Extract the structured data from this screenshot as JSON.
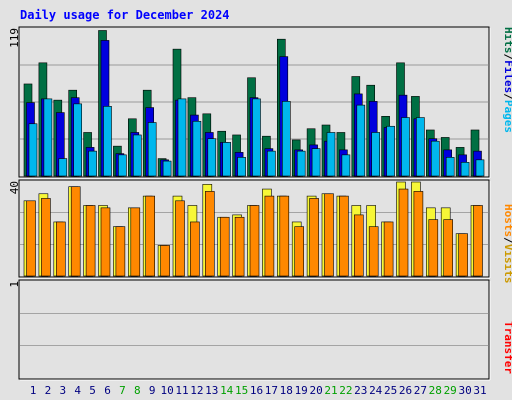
{
  "chart_data": [
    {
      "type": "bar",
      "title": "Daily usage for December 2024",
      "ymax_label": "119",
      "ylim": [
        0,
        119
      ],
      "categories": [
        "1",
        "2",
        "3",
        "4",
        "5",
        "6",
        "7",
        "8",
        "9",
        "10",
        "11",
        "12",
        "13",
        "14",
        "15",
        "16",
        "17",
        "18",
        "19",
        "20",
        "21",
        "22",
        "23",
        "24",
        "25",
        "26",
        "27",
        "28",
        "29",
        "30",
        "31"
      ],
      "weekend_days": [
        "7",
        "8",
        "14",
        "15",
        "21",
        "22",
        "28",
        "29"
      ],
      "series": [
        {
          "name": "Hits",
          "color": "#006f43",
          "values": [
            74,
            91,
            61,
            69,
            35,
            117,
            24,
            46,
            69,
            14,
            102,
            63,
            50,
            36,
            33,
            79,
            32,
            110,
            29,
            38,
            41,
            35,
            80,
            73,
            48,
            91,
            64,
            37,
            31,
            23,
            37
          ]
        },
        {
          "name": "Files",
          "color": "#0000dd",
          "values": [
            59,
            62,
            51,
            63,
            23,
            109,
            18,
            35,
            55,
            13,
            61,
            49,
            35,
            27,
            19,
            63,
            22,
            96,
            21,
            25,
            28,
            21,
            66,
            60,
            39,
            65,
            46,
            30,
            21,
            17,
            20
          ]
        },
        {
          "name": "Pages",
          "color": "#00b7ed",
          "values": [
            42,
            62,
            14,
            58,
            20,
            56,
            17,
            33,
            43,
            12,
            62,
            44,
            30,
            27,
            15,
            62,
            20,
            60,
            20,
            22,
            35,
            17,
            57,
            35,
            40,
            47,
            47,
            28,
            15,
            11,
            13
          ]
        }
      ],
      "side_label": {
        "hits": "Hits",
        "sep1": "/",
        "files": "Files",
        "sep2": "/",
        "pages": "Pages"
      }
    },
    {
      "type": "bar",
      "ymax_label": "40",
      "ylim": [
        0,
        40
      ],
      "categories": [
        "1",
        "2",
        "3",
        "4",
        "5",
        "6",
        "7",
        "8",
        "9",
        "10",
        "11",
        "12",
        "13",
        "14",
        "15",
        "16",
        "17",
        "18",
        "19",
        "20",
        "21",
        "22",
        "23",
        "24",
        "25",
        "26",
        "27",
        "28",
        "29",
        "30",
        "31"
      ],
      "series": [
        {
          "name": "Visits",
          "color": "#f7f737",
          "values": [
            32,
            35,
            23,
            38,
            30,
            30,
            21,
            29,
            34,
            13,
            34,
            30,
            39,
            25,
            26,
            30,
            37,
            34,
            23,
            34,
            35,
            34,
            30,
            30,
            23,
            40,
            40,
            29,
            29,
            18,
            30
          ]
        },
        {
          "name": "Hosts",
          "color": "#ff8800",
          "values": [
            32,
            33,
            23,
            38,
            30,
            29,
            21,
            29,
            34,
            13,
            32,
            23,
            36,
            25,
            25,
            30,
            34,
            34,
            21,
            33,
            35,
            34,
            26,
            21,
            23,
            37,
            36,
            24,
            24,
            18,
            30
          ]
        }
      ],
      "side_label": {
        "hosts": "Hosts",
        "sep": "/",
        "visits": "Visits"
      }
    },
    {
      "type": "bar",
      "ymax_label": "1",
      "ylim": [
        0,
        1
      ],
      "categories": [
        "1",
        "2",
        "3",
        "4",
        "5",
        "6",
        "7",
        "8",
        "9",
        "10",
        "11",
        "12",
        "13",
        "14",
        "15",
        "16",
        "17",
        "18",
        "19",
        "20",
        "21",
        "22",
        "23",
        "24",
        "25",
        "26",
        "27",
        "28",
        "29",
        "30",
        "31"
      ],
      "series": [
        {
          "name": "Transfer",
          "color": "#ff0000",
          "values": [
            0,
            0,
            0,
            0,
            0,
            0,
            0,
            0,
            0,
            0,
            0,
            0,
            0,
            0,
            0,
            0,
            0,
            0,
            0,
            0,
            0,
            0,
            0,
            0,
            0,
            0,
            0,
            0,
            0,
            0,
            0
          ]
        }
      ],
      "side_label": {
        "transfer": "Transfer"
      }
    }
  ],
  "colors": {
    "title": "#0000ff",
    "weekday": "#000080",
    "weekend": "#00a000",
    "hits": "#006f43",
    "files": "#0000dd",
    "pages": "#00b7ed",
    "visits": "#cc9900",
    "hosts": "#ff8800",
    "transfer": "#ff0000"
  }
}
